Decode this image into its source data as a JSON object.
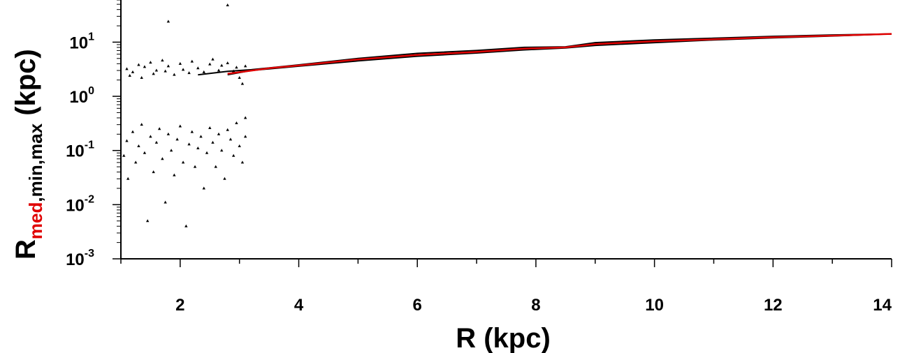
{
  "chart_data": {
    "type": "scatter",
    "title": "",
    "xlabel": "R (kpc)",
    "ylabel": {
      "base": "R",
      "sub_red": "med",
      "sub_black": ",min,max",
      "unit": " (kpc)"
    },
    "xlim": [
      1,
      14
    ],
    "ylim": [
      0.001,
      60
    ],
    "y_scale": "log",
    "x_ticks": [
      {
        "value": 2,
        "label": "2"
      },
      {
        "value": 4,
        "label": "4"
      },
      {
        "value": 6,
        "label": "6"
      },
      {
        "value": 8,
        "label": "8"
      },
      {
        "value": 10,
        "label": "10"
      },
      {
        "value": 12,
        "label": "12"
      },
      {
        "value": 14,
        "label": "14"
      }
    ],
    "y_ticks": [
      {
        "value": 0.001,
        "base": "10",
        "exp": "-3"
      },
      {
        "value": 0.01,
        "base": "10",
        "exp": "-2"
      },
      {
        "value": 0.1,
        "base": "10",
        "exp": "-1"
      },
      {
        "value": 1,
        "base": "10",
        "exp": "0"
      },
      {
        "value": 10,
        "base": "10",
        "exp": "1"
      }
    ],
    "grid": false,
    "colors": {
      "median": "#e00000",
      "minmax": "#000000"
    },
    "series": [
      {
        "role": "max",
        "color": "#000000",
        "points": [
          [
            2.3,
            2.5
          ],
          [
            2.8,
            2.9
          ],
          [
            3.2,
            3.1
          ],
          [
            4.0,
            3.8
          ],
          [
            5.0,
            5.0
          ],
          [
            6.0,
            6.2
          ],
          [
            7.0,
            7.0
          ],
          [
            7.8,
            8.0
          ],
          [
            8.5,
            8.2
          ],
          [
            9.0,
            9.8
          ],
          [
            10.0,
            11.0
          ],
          [
            11.0,
            11.8
          ],
          [
            12.0,
            12.8
          ],
          [
            13.0,
            13.6
          ],
          [
            14.0,
            14.2
          ]
        ]
      },
      {
        "role": "min",
        "color": "#000000",
        "points": [
          [
            2.8,
            2.5
          ],
          [
            3.2,
            3.0
          ],
          [
            4.0,
            3.6
          ],
          [
            5.0,
            4.5
          ],
          [
            6.0,
            5.5
          ],
          [
            7.0,
            6.3
          ],
          [
            7.8,
            7.2
          ],
          [
            8.5,
            7.8
          ],
          [
            9.0,
            8.7
          ],
          [
            10.0,
            9.8
          ],
          [
            11.0,
            11.0
          ],
          [
            12.0,
            12.0
          ],
          [
            13.0,
            13.0
          ],
          [
            14.0,
            14.2
          ]
        ]
      },
      {
        "role": "median",
        "color": "#e00000",
        "points": [
          [
            2.8,
            2.6
          ],
          [
            3.5,
            3.3
          ],
          [
            4.0,
            3.7
          ],
          [
            5.0,
            4.8
          ],
          [
            6.0,
            5.8
          ],
          [
            7.0,
            6.6
          ],
          [
            7.8,
            7.6
          ],
          [
            8.5,
            8.0
          ],
          [
            9.0,
            9.2
          ],
          [
            10.0,
            10.4
          ],
          [
            11.0,
            11.3
          ],
          [
            12.0,
            12.3
          ],
          [
            13.0,
            13.2
          ],
          [
            14.0,
            14.2
          ]
        ]
      }
    ],
    "scatter_points": [
      {
        "x": 1.1,
        "y": 3.2
      },
      {
        "x": 1.15,
        "y": 2.4
      },
      {
        "x": 1.2,
        "y": 2.8
      },
      {
        "x": 1.3,
        "y": 3.8
      },
      {
        "x": 1.35,
        "y": 2.2
      },
      {
        "x": 1.4,
        "y": 3.5
      },
      {
        "x": 1.5,
        "y": 4.2
      },
      {
        "x": 1.55,
        "y": 2.6
      },
      {
        "x": 1.6,
        "y": 3.0
      },
      {
        "x": 1.7,
        "y": 4.6
      },
      {
        "x": 1.75,
        "y": 2.9
      },
      {
        "x": 1.8,
        "y": 3.6
      },
      {
        "x": 1.9,
        "y": 2.5
      },
      {
        "x": 2.0,
        "y": 4.0
      },
      {
        "x": 2.05,
        "y": 3.1
      },
      {
        "x": 2.15,
        "y": 2.7
      },
      {
        "x": 2.2,
        "y": 4.4
      },
      {
        "x": 2.3,
        "y": 3.3
      },
      {
        "x": 2.4,
        "y": 2.8
      },
      {
        "x": 2.5,
        "y": 3.9
      },
      {
        "x": 2.55,
        "y": 4.8
      },
      {
        "x": 2.65,
        "y": 3.0
      },
      {
        "x": 2.7,
        "y": 3.7
      },
      {
        "x": 2.8,
        "y": 4.1
      },
      {
        "x": 2.9,
        "y": 2.9
      },
      {
        "x": 2.95,
        "y": 3.4
      },
      {
        "x": 3.0,
        "y": 2.2
      },
      {
        "x": 3.05,
        "y": 1.7
      },
      {
        "x": 3.1,
        "y": 3.6
      },
      {
        "x": 1.8,
        "y": 24
      },
      {
        "x": 2.8,
        "y": 48
      },
      {
        "x": 1.05,
        "y": 0.08
      },
      {
        "x": 1.1,
        "y": 0.15
      },
      {
        "x": 1.12,
        "y": 0.03
      },
      {
        "x": 1.2,
        "y": 0.22
      },
      {
        "x": 1.25,
        "y": 0.06
      },
      {
        "x": 1.3,
        "y": 0.12
      },
      {
        "x": 1.35,
        "y": 0.3
      },
      {
        "x": 1.4,
        "y": 0.09
      },
      {
        "x": 1.45,
        "y": 0.005
      },
      {
        "x": 1.5,
        "y": 0.18
      },
      {
        "x": 1.55,
        "y": 0.04
      },
      {
        "x": 1.6,
        "y": 0.14
      },
      {
        "x": 1.65,
        "y": 0.25
      },
      {
        "x": 1.7,
        "y": 0.07
      },
      {
        "x": 1.75,
        "y": 0.011
      },
      {
        "x": 1.8,
        "y": 0.2
      },
      {
        "x": 1.85,
        "y": 0.1
      },
      {
        "x": 1.9,
        "y": 0.035
      },
      {
        "x": 1.95,
        "y": 0.16
      },
      {
        "x": 2.0,
        "y": 0.28
      },
      {
        "x": 2.05,
        "y": 0.06
      },
      {
        "x": 2.1,
        "y": 0.004
      },
      {
        "x": 2.15,
        "y": 0.13
      },
      {
        "x": 2.2,
        "y": 0.22
      },
      {
        "x": 2.25,
        "y": 0.05
      },
      {
        "x": 2.3,
        "y": 0.11
      },
      {
        "x": 2.35,
        "y": 0.18
      },
      {
        "x": 2.4,
        "y": 0.02
      },
      {
        "x": 2.45,
        "y": 0.09
      },
      {
        "x": 2.5,
        "y": 0.26
      },
      {
        "x": 2.55,
        "y": 0.14
      },
      {
        "x": 2.6,
        "y": 0.05
      },
      {
        "x": 2.65,
        "y": 0.2
      },
      {
        "x": 2.7,
        "y": 0.1
      },
      {
        "x": 2.75,
        "y": 0.03
      },
      {
        "x": 2.8,
        "y": 0.24
      },
      {
        "x": 2.85,
        "y": 0.16
      },
      {
        "x": 2.9,
        "y": 0.08
      },
      {
        "x": 2.95,
        "y": 0.32
      },
      {
        "x": 3.0,
        "y": 0.12
      },
      {
        "x": 3.05,
        "y": 0.06
      },
      {
        "x": 3.1,
        "y": 0.18
      },
      {
        "x": 3.1,
        "y": 0.4
      }
    ]
  }
}
